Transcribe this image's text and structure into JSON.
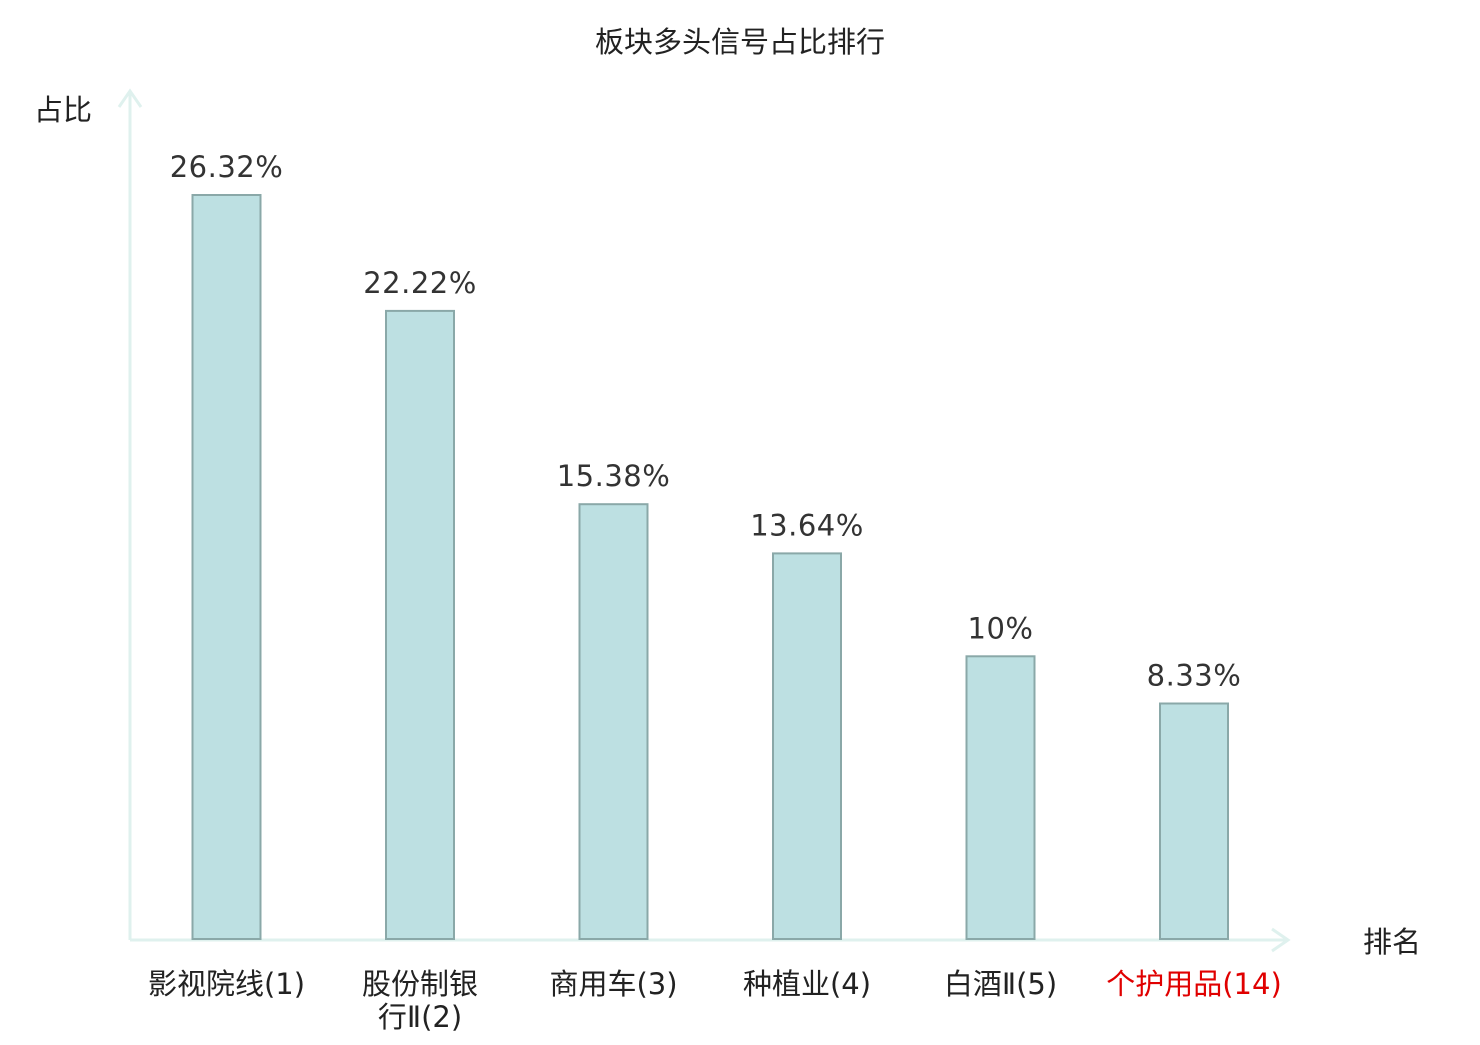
{
  "chart_data": {
    "type": "bar",
    "title": "板块多头信号占比排行",
    "ylabel": "占比",
    "xlabel": "排名",
    "categories": [
      {
        "lines": [
          "影视院线(1)"
        ],
        "highlight": false
      },
      {
        "lines": [
          "股份制银",
          "行Ⅱ(2)"
        ],
        "highlight": false
      },
      {
        "lines": [
          "商用车(3)"
        ],
        "highlight": false
      },
      {
        "lines": [
          "种植业(4)"
        ],
        "highlight": false
      },
      {
        "lines": [
          "白酒Ⅱ(5)"
        ],
        "highlight": false
      },
      {
        "lines": [
          "个护用品(14)"
        ],
        "highlight": true
      }
    ],
    "values": [
      26.32,
      22.22,
      15.38,
      13.64,
      10,
      8.33
    ],
    "value_labels": [
      "26.32%",
      "22.22%",
      "15.38%",
      "13.64%",
      "10%",
      "8.33%"
    ],
    "ylim": [
      0,
      26.32
    ],
    "grid": false,
    "colors": {
      "bar_fill": "#bde0e2",
      "bar_stroke": "#8aa8a8",
      "axis": "#dff1ee",
      "category_text": "#222222",
      "highlight_text": "#e00000"
    }
  }
}
